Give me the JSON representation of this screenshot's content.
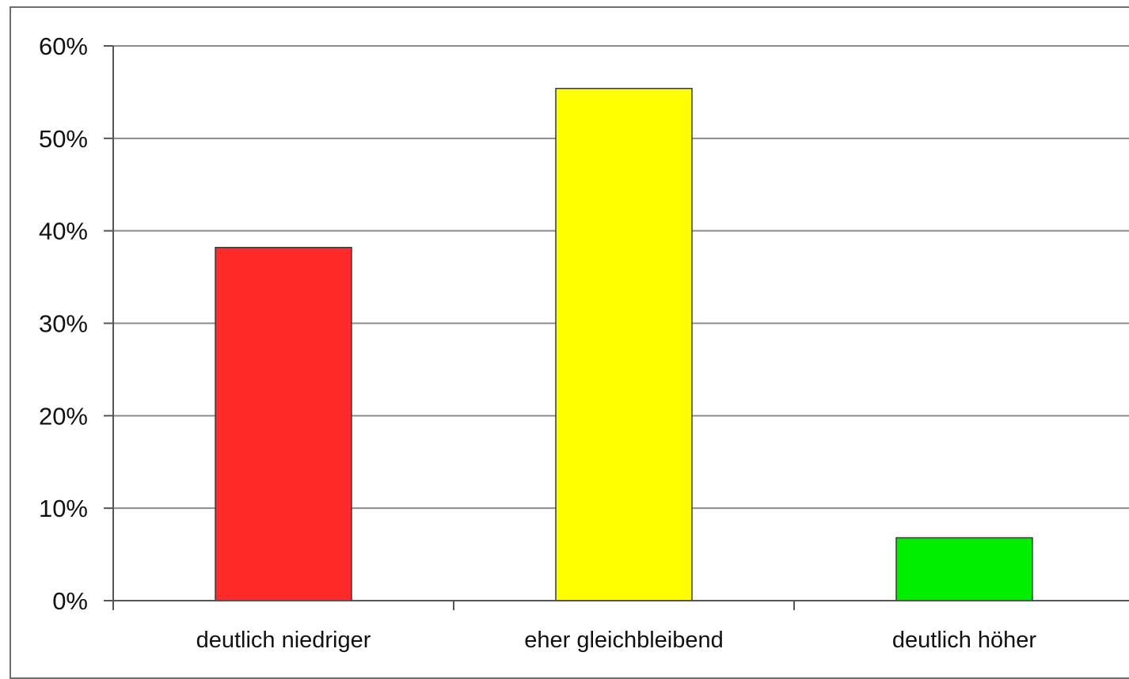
{
  "chart_data": {
    "type": "bar",
    "categories": [
      "deutlich niedriger",
      "eher gleichbleibend",
      "deutlich höher"
    ],
    "values": [
      38.2,
      55.4,
      6.8
    ],
    "bar_colors": [
      "#ff2a2a",
      "#ffff00",
      "#00ee00"
    ],
    "gridline_color": "#8c8c8c",
    "ylim": [
      0,
      60
    ],
    "yticks": [
      0,
      10,
      20,
      30,
      40,
      50,
      60
    ],
    "ytick_labels": [
      "0%",
      "10%",
      "20%",
      "30%",
      "40%",
      "50%",
      "60%"
    ],
    "grid": true,
    "legend": "none",
    "title": "",
    "xlabel": "",
    "ylabel": ""
  }
}
